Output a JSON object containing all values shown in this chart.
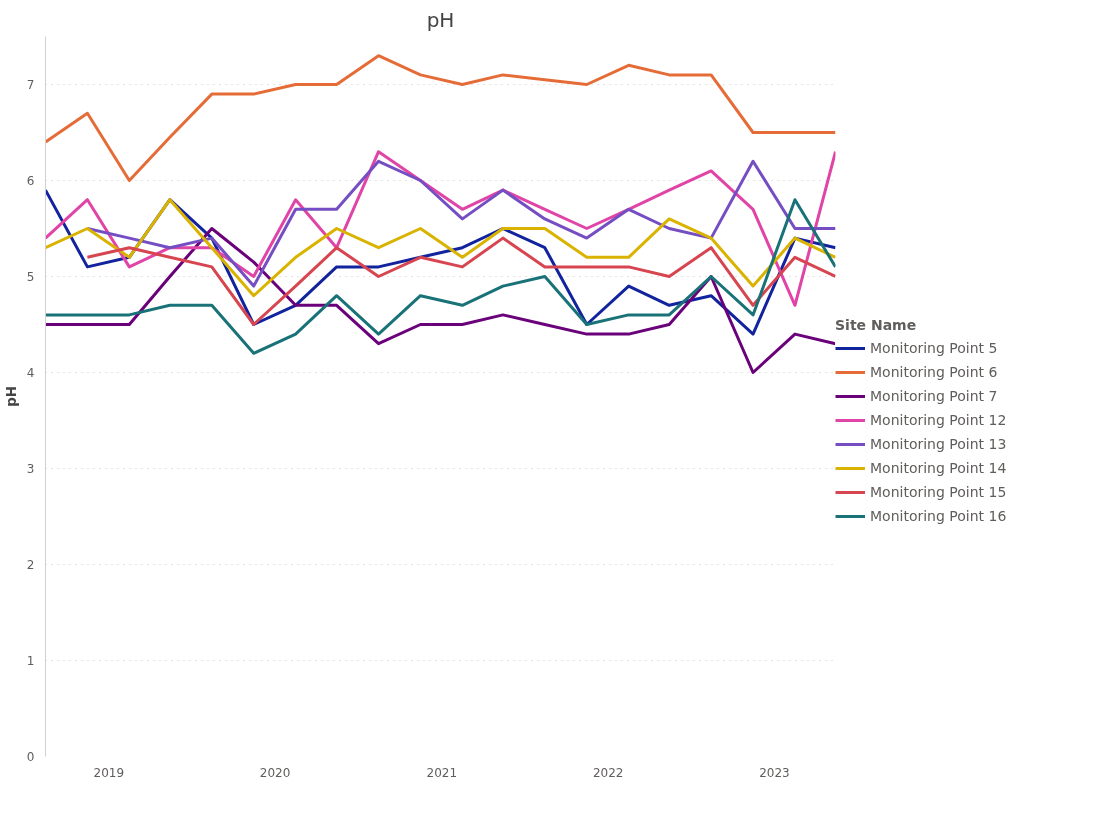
{
  "chart_data": {
    "type": "line",
    "title": "pH",
    "ylabel": "pH",
    "legend_title": "Site Name",
    "legend": "right",
    "grid": "y",
    "line_style": "solid",
    "marker": "none",
    "x": [
      "2018-08-15",
      "2018-11-15",
      "2019-02-15",
      "2019-05-15",
      "2019-08-15",
      "2019-11-15",
      "2020-02-15",
      "2020-05-15",
      "2020-08-15",
      "2020-11-15",
      "2021-02-15",
      "2021-05-15",
      "2021-08-15",
      "2021-11-15",
      "2022-02-15",
      "2022-05-15",
      "2022-08-15",
      "2022-11-15",
      "2023-02-15",
      "2023-05-15"
    ],
    "xlim": [
      "2018-08-15",
      "2023-05-15"
    ],
    "xticks": [
      "2019",
      "2020",
      "2021",
      "2022",
      "2023"
    ],
    "ylim": [
      0,
      7.5
    ],
    "yticks": [
      0,
      1,
      2,
      3,
      4,
      5,
      6,
      7
    ],
    "series": [
      {
        "name": "Monitoring Point 5",
        "color": "#12239e",
        "values": [
          5.9,
          5.1,
          5.2,
          5.8,
          5.4,
          4.5,
          4.7,
          5.1,
          5.1,
          5.2,
          5.3,
          5.5,
          5.3,
          4.5,
          4.9,
          4.7,
          4.8,
          4.4,
          5.4,
          5.3
        ]
      },
      {
        "name": "Monitoring Point 6",
        "color": "#e66c37",
        "values": [
          6.4,
          6.7,
          6.0,
          6.45,
          6.9,
          6.9,
          7.0,
          7.0,
          7.3,
          7.1,
          7.0,
          7.1,
          7.05,
          7.0,
          7.2,
          7.1,
          7.1,
          6.5,
          6.5,
          6.5
        ]
      },
      {
        "name": "Monitoring Point 7",
        "color": "#6b007b",
        "values": [
          4.5,
          4.5,
          4.5,
          5.0,
          5.5,
          5.15,
          4.7,
          4.7,
          4.3,
          4.5,
          4.5,
          4.6,
          4.5,
          4.4,
          4.4,
          4.5,
          5.0,
          4.0,
          4.4,
          4.3
        ]
      },
      {
        "name": "Monitoring Point 12",
        "color": "#e044a7",
        "values": [
          5.4,
          5.8,
          5.1,
          5.3,
          5.3,
          5.0,
          5.8,
          5.3,
          6.3,
          6.0,
          5.7,
          5.9,
          5.7,
          5.5,
          5.7,
          5.9,
          6.1,
          5.7,
          4.7,
          6.3
        ]
      },
      {
        "name": "Monitoring Point 13",
        "color": "#744ec2",
        "values": [
          null,
          5.5,
          5.4,
          5.3,
          5.4,
          4.9,
          5.7,
          5.7,
          6.2,
          6.0,
          5.6,
          5.9,
          5.6,
          5.4,
          5.7,
          5.5,
          5.4,
          6.2,
          5.5,
          5.5
        ]
      },
      {
        "name": "Monitoring Point 14",
        "color": "#d9b300",
        "values": [
          5.3,
          5.5,
          5.2,
          5.8,
          5.3,
          4.8,
          5.2,
          5.5,
          5.3,
          5.5,
          5.2,
          5.5,
          5.5,
          5.2,
          5.2,
          5.6,
          5.4,
          4.9,
          5.4,
          5.2
        ]
      },
      {
        "name": "Monitoring Point 15",
        "color": "#d64550",
        "values": [
          null,
          5.2,
          5.3,
          5.2,
          5.1,
          4.5,
          4.9,
          5.3,
          5.0,
          5.2,
          5.1,
          5.4,
          5.1,
          5.1,
          5.1,
          5.0,
          5.3,
          4.7,
          5.2,
          5.0
        ]
      },
      {
        "name": "Monitoring Point 16",
        "color": "#197278",
        "values": [
          4.6,
          4.6,
          4.6,
          4.7,
          4.7,
          4.2,
          4.4,
          4.8,
          4.4,
          4.8,
          4.7,
          4.9,
          5.0,
          4.5,
          4.6,
          4.6,
          5.0,
          4.6,
          5.8,
          5.1
        ]
      }
    ]
  }
}
